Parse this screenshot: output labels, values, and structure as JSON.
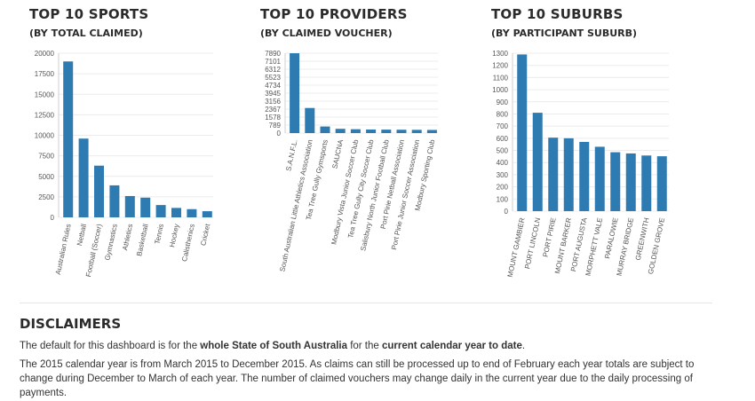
{
  "charts": [
    {
      "title": "TOP 10 SPORTS",
      "subtitle": "(BY TOTAL CLAIMED)"
    },
    {
      "title": "TOP 10 PROVIDERS",
      "subtitle": "(BY CLAIMED VOUCHER)"
    },
    {
      "title": "TOP 10 SUBURBS",
      "subtitle": "(BY PARTICIPANT SUBURB)"
    }
  ],
  "chart_data": [
    {
      "type": "bar",
      "title": "TOP 10 SPORTS",
      "subtitle": "(BY TOTAL CLAIMED)",
      "categories": [
        "Australian Rules",
        "Netball",
        "Football (Soccer)",
        "Gymnastics",
        "Athletics",
        "Basketball",
        "Tennis",
        "Hockey",
        "Calisthenics",
        "Cricket"
      ],
      "values": [
        19000,
        9600,
        6300,
        3900,
        2600,
        2400,
        1500,
        1150,
        1000,
        750
      ],
      "yticks": [
        0,
        2500,
        5000,
        7500,
        10000,
        12500,
        15000,
        17500,
        20000
      ],
      "ylim": [
        0,
        20000
      ],
      "color": "#2e7bb1",
      "grid": true
    },
    {
      "type": "bar",
      "title": "TOP 10 PROVIDERS",
      "subtitle": "(BY CLAIMED VOUCHER)",
      "categories": [
        "S.A.N.F.L.",
        "South Australian Little Athletics Association",
        "Tea Tree Gully Gymsports",
        "SAUCNA",
        "Modbury Vista Junior Soccer Club",
        "Tea Tree Gully City Soccer Club",
        "Salisbury North Junior Football Club",
        "Port Pirie Netball Association",
        "Port Pirie Junior Soccer Association",
        "Modbury Sporting Club"
      ],
      "values": [
        7890,
        2480,
        650,
        420,
        380,
        350,
        340,
        330,
        320,
        310
      ],
      "yticks": [
        0,
        789,
        1578,
        2367,
        3156,
        3945,
        4734,
        5523,
        6312,
        7101,
        7890
      ],
      "ylim": [
        0,
        7890
      ],
      "color": "#2e7bb1",
      "grid": true
    },
    {
      "type": "bar",
      "title": "TOP 10 SUBURBS",
      "subtitle": "(BY PARTICIPANT SUBURB)",
      "categories": [
        "MOUNT GAMBIER",
        "PORT LINCOLN",
        "PORT PIRIE",
        "MOUNT BARKER",
        "PORT AUGUSTA",
        "MORPHETT VALE",
        "PARALOWIE",
        "MURRAY BRIDGE",
        "GREENWITH",
        "GOLDEN GROVE"
      ],
      "values": [
        1290,
        810,
        605,
        600,
        570,
        530,
        485,
        475,
        458,
        452
      ],
      "yticks": [
        0,
        100,
        200,
        300,
        400,
        500,
        600,
        700,
        800,
        900,
        1000,
        1100,
        1200,
        1300
      ],
      "ylim": [
        0,
        1300
      ],
      "color": "#2e7bb1",
      "grid": true
    }
  ],
  "disclaimers": {
    "title": "DISCLAIMERS",
    "p1_pre": "The default for this dashboard is for the ",
    "p1_bold1": "whole State of South Australia",
    "p1_mid": " for the ",
    "p1_bold2": "current calendar year to date",
    "p1_post": ".",
    "p2": "The 2015 calendar year is from March 2015 to December 2015. As claims can still be processed up to end of February each year totals are subject to change during December to March of each year. The number of claimed vouchers may change daily in the current year due to the daily processing of payments."
  }
}
